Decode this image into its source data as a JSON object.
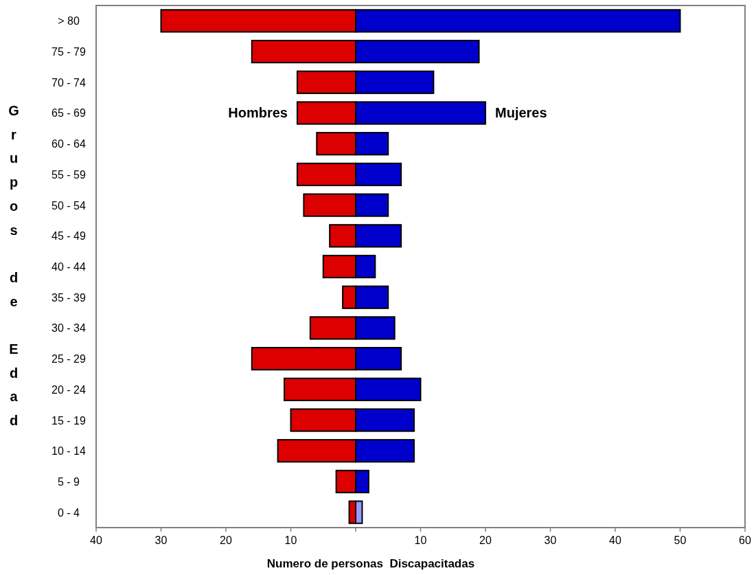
{
  "chart_data": {
    "type": "bar",
    "orientation": "horizontal",
    "stacked": true,
    "categories": [
      "> 80",
      "75 - 79",
      "70 - 74",
      "65 - 69",
      "60 - 64",
      "55 - 59",
      "50 - 54",
      "45 - 49",
      "40 - 44",
      "35 - 39",
      "30 - 34",
      "25 - 29",
      "20 - 24",
      "15 - 19",
      "10 - 14",
      "5 - 9",
      "0 - 4"
    ],
    "series": [
      {
        "name": "Hombres",
        "color": "#dd0000",
        "values": [
          -30,
          -16,
          -9,
          -9,
          -6,
          -9,
          -8,
          -4,
          -5,
          -2,
          -7,
          -16,
          -11,
          -10,
          -12,
          -3,
          -1
        ]
      },
      {
        "name": "Mujeres",
        "colors": [
          "#0000cc",
          "#0000cc",
          "#0000cc",
          "#0000cc",
          "#0000cc",
          "#0000cc",
          "#0000cc",
          "#0000cc",
          "#0000cc",
          "#0000cc",
          "#0000cc",
          "#0000cc",
          "#0000cc",
          "#0000cc",
          "#0000cc",
          "#0000cc",
          "#9999ff"
        ],
        "values": [
          50,
          19,
          12,
          20,
          5,
          7,
          5,
          7,
          3,
          5,
          6,
          7,
          10,
          9,
          9,
          2,
          1
        ]
      }
    ],
    "xlim": [
      -40,
      60
    ],
    "xticks": [
      {
        "value": -40,
        "label": "40"
      },
      {
        "value": -30,
        "label": "30"
      },
      {
        "value": -20,
        "label": "20"
      },
      {
        "value": -10,
        "label": "10"
      },
      {
        "value": 0,
        "label": null
      },
      10,
      20,
      30,
      40,
      50,
      60
    ],
    "xlabel": "Numero de personas  Discapacitadas",
    "ylabel": "Grupos de Edad"
  }
}
